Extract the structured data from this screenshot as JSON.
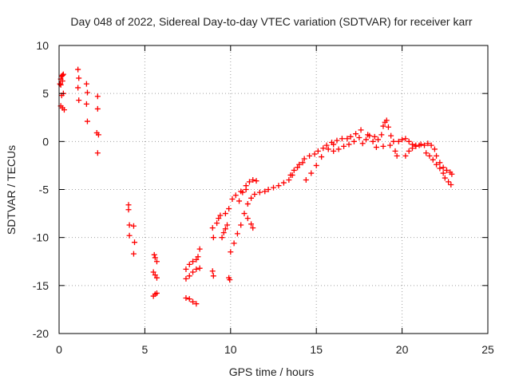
{
  "chart_data": {
    "type": "scatter",
    "title": "Day 048 of 2022, Sidereal Day-to-day VTEC variation (SDTVAR) for receiver karr",
    "xlabel": "GPS time / hours",
    "ylabel": "SDTVAR / TECUs",
    "xlim": [
      0,
      25
    ],
    "ylim": [
      -20,
      10
    ],
    "x_ticks": [
      0,
      5,
      10,
      15,
      20,
      25
    ],
    "y_ticks": [
      10,
      5,
      0,
      -5,
      -10,
      -15,
      -20
    ],
    "x_tick_labels": [
      "0",
      "5",
      "10",
      "15",
      "20",
      "25"
    ],
    "y_tick_labels": [
      "10",
      "5",
      "0",
      "-5",
      "-10",
      "-15",
      "-20"
    ],
    "grid": true,
    "marker": "+",
    "series": [
      {
        "name": "SDTVAR",
        "color": "#ff0000",
        "points": [
          [
            0.05,
            6.0
          ],
          [
            0.1,
            6.5
          ],
          [
            0.15,
            6.8
          ],
          [
            0.2,
            6.3
          ],
          [
            0.25,
            7.0
          ],
          [
            0.1,
            5.9
          ],
          [
            0.2,
            6.9
          ],
          [
            0.15,
            4.8
          ],
          [
            0.25,
            5.0
          ],
          [
            0.1,
            3.7
          ],
          [
            0.2,
            3.5
          ],
          [
            0.3,
            3.3
          ],
          [
            1.1,
            7.5
          ],
          [
            1.15,
            6.6
          ],
          [
            1.1,
            5.6
          ],
          [
            1.15,
            4.3
          ],
          [
            1.6,
            6.0
          ],
          [
            1.65,
            5.1
          ],
          [
            1.6,
            3.9
          ],
          [
            1.65,
            2.1
          ],
          [
            2.25,
            4.7
          ],
          [
            2.25,
            3.4
          ],
          [
            2.2,
            0.9
          ],
          [
            2.3,
            0.7
          ],
          [
            2.25,
            -1.2
          ],
          [
            4.05,
            -6.6
          ],
          [
            4.05,
            -7.1
          ],
          [
            4.1,
            -8.7
          ],
          [
            4.1,
            -9.8
          ],
          [
            4.35,
            -8.8
          ],
          [
            4.4,
            -10.5
          ],
          [
            4.35,
            -11.7
          ],
          [
            5.55,
            -11.8
          ],
          [
            5.6,
            -12.1
          ],
          [
            5.7,
            -12.5
          ],
          [
            5.5,
            -13.6
          ],
          [
            5.6,
            -13.9
          ],
          [
            5.7,
            -14.2
          ],
          [
            5.5,
            -16.1
          ],
          [
            5.6,
            -15.9
          ],
          [
            5.7,
            -15.8
          ],
          [
            7.4,
            -16.3
          ],
          [
            7.6,
            -16.4
          ],
          [
            7.8,
            -16.7
          ],
          [
            8.0,
            -16.9
          ],
          [
            7.4,
            -14.3
          ],
          [
            7.6,
            -14.0
          ],
          [
            7.8,
            -13.6
          ],
          [
            8.0,
            -13.3
          ],
          [
            8.2,
            -13.2
          ],
          [
            7.4,
            -13.3
          ],
          [
            7.6,
            -12.8
          ],
          [
            7.8,
            -12.5
          ],
          [
            8.0,
            -12.3
          ],
          [
            8.1,
            -12.0
          ],
          [
            8.2,
            -11.2
          ],
          [
            8.95,
            -9.0
          ],
          [
            9.0,
            -10.0
          ],
          [
            8.95,
            -13.5
          ],
          [
            9.0,
            -14.0
          ],
          [
            9.2,
            -8.5
          ],
          [
            9.3,
            -8.0
          ],
          [
            9.4,
            -7.7
          ],
          [
            9.5,
            -10.0
          ],
          [
            9.6,
            -9.5
          ],
          [
            9.7,
            -9.1
          ],
          [
            9.8,
            -8.7
          ],
          [
            9.9,
            -14.2
          ],
          [
            9.95,
            -14.4
          ],
          [
            9.7,
            -7.5
          ],
          [
            9.9,
            -7.0
          ],
          [
            10.1,
            -6.0
          ],
          [
            10.3,
            -5.6
          ],
          [
            10.6,
            -5.2
          ],
          [
            10.9,
            -5.0
          ],
          [
            10.0,
            -11.5
          ],
          [
            10.2,
            -10.6
          ],
          [
            10.4,
            -9.6
          ],
          [
            10.6,
            -8.7
          ],
          [
            10.8,
            -7.5
          ],
          [
            11.0,
            -6.5
          ],
          [
            11.2,
            -5.9
          ],
          [
            11.4,
            -5.5
          ],
          [
            11.7,
            -5.3
          ],
          [
            12.0,
            -5.2
          ],
          [
            10.5,
            -6.2
          ],
          [
            10.7,
            -5.3
          ],
          [
            10.9,
            -4.6
          ],
          [
            11.1,
            -4.2
          ],
          [
            11.3,
            -4.0
          ],
          [
            11.5,
            -4.1
          ],
          [
            11.0,
            -8.0
          ],
          [
            11.2,
            -8.6
          ],
          [
            11.3,
            -9.0
          ],
          [
            12.2,
            -5.0
          ],
          [
            12.5,
            -4.8
          ],
          [
            12.8,
            -4.6
          ],
          [
            13.1,
            -4.3
          ],
          [
            13.4,
            -4.0
          ],
          [
            13.6,
            -3.5
          ],
          [
            13.5,
            -3.5
          ],
          [
            13.7,
            -3.0
          ],
          [
            13.9,
            -2.7
          ],
          [
            14.0,
            -2.4
          ],
          [
            14.2,
            -2.2
          ],
          [
            14.3,
            -1.8
          ],
          [
            14.6,
            -1.5
          ],
          [
            14.9,
            -1.3
          ],
          [
            15.1,
            -1.0
          ],
          [
            15.4,
            -0.7
          ],
          [
            14.4,
            -4.0
          ],
          [
            14.7,
            -3.3
          ],
          [
            15.0,
            -2.5
          ],
          [
            15.3,
            -1.6
          ],
          [
            15.7,
            -0.8
          ],
          [
            16.0,
            -0.3
          ],
          [
            15.6,
            -0.4
          ],
          [
            15.9,
            -0.1
          ],
          [
            16.2,
            0.1
          ],
          [
            16.5,
            0.3
          ],
          [
            16.8,
            0.3
          ],
          [
            17.0,
            0.5
          ],
          [
            16.0,
            -1.0
          ],
          [
            16.3,
            -0.8
          ],
          [
            16.6,
            -0.5
          ],
          [
            16.9,
            -0.3
          ],
          [
            17.2,
            0.0
          ],
          [
            17.3,
            0.8
          ],
          [
            17.5,
            0.4
          ],
          [
            17.7,
            -0.2
          ],
          [
            17.9,
            0.2
          ],
          [
            18.1,
            0.6
          ],
          [
            18.3,
            0.0
          ],
          [
            17.6,
            1.2
          ],
          [
            18.0,
            0.7
          ],
          [
            18.4,
            0.5
          ],
          [
            18.6,
            0.2
          ],
          [
            18.8,
            0.7
          ],
          [
            18.9,
            1.6
          ],
          [
            19.0,
            2.0
          ],
          [
            19.1,
            2.2
          ],
          [
            19.2,
            1.5
          ],
          [
            19.35,
            0.6
          ],
          [
            19.5,
            0.0
          ],
          [
            19.6,
            -1.0
          ],
          [
            19.7,
            -1.5
          ],
          [
            18.5,
            -0.6
          ],
          [
            18.9,
            -0.5
          ],
          [
            19.3,
            -0.4
          ],
          [
            19.8,
            0.0
          ],
          [
            20.0,
            0.2
          ],
          [
            20.2,
            0.3
          ],
          [
            20.4,
            0.0
          ],
          [
            20.6,
            -0.3
          ],
          [
            20.8,
            -0.4
          ],
          [
            20.2,
            -1.5
          ],
          [
            20.4,
            -1.0
          ],
          [
            20.6,
            -0.7
          ],
          [
            20.8,
            -0.5
          ],
          [
            21.0,
            -0.4
          ],
          [
            21.1,
            -0.3
          ],
          [
            21.3,
            -0.4
          ],
          [
            21.5,
            -0.2
          ],
          [
            21.7,
            -0.4
          ],
          [
            21.9,
            -0.8
          ],
          [
            21.4,
            -1.2
          ],
          [
            21.6,
            -1.5
          ],
          [
            21.8,
            -1.9
          ],
          [
            22.0,
            -2.4
          ],
          [
            22.2,
            -2.8
          ],
          [
            22.4,
            -3.3
          ],
          [
            22.0,
            -1.5
          ],
          [
            22.2,
            -2.2
          ],
          [
            22.4,
            -2.7
          ],
          [
            22.6,
            -3.0
          ],
          [
            22.8,
            -3.2
          ],
          [
            22.9,
            -3.4
          ],
          [
            22.5,
            -3.8
          ],
          [
            22.7,
            -4.2
          ],
          [
            22.85,
            -4.5
          ]
        ]
      }
    ]
  }
}
